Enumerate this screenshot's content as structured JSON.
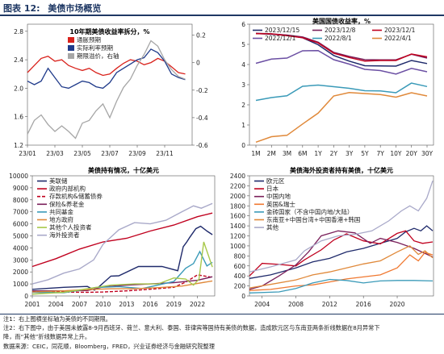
{
  "header": {
    "label": "图表 12:",
    "title": "美债市场概览"
  },
  "chart_data": [
    {
      "id": "c1",
      "type": "line",
      "title": "10年期美债收益率拆分，%",
      "x_ticks": [
        "23/01",
        "23/03",
        "23/05",
        "23/07",
        "23/09",
        "23/11"
      ],
      "y_left_ticks": [
        1.2,
        1.6,
        2.0,
        2.4,
        2.8
      ],
      "y_left_lim": [
        1.2,
        2.9
      ],
      "y_right_ticks": [
        -0.6,
        -0.4,
        -0.2,
        0,
        0.2
      ],
      "y_right_lim": [
        -0.6,
        0.28
      ],
      "x_lim": [
        0,
        12
      ],
      "series": [
        {
          "name": "通胀预期",
          "axis": "left",
          "color": "#d9221c",
          "x": [
            0,
            0.5,
            1,
            1.5,
            2,
            2.5,
            3,
            3.5,
            4,
            4.5,
            5,
            5.5,
            6,
            6.5,
            7,
            7.5,
            8,
            8.5,
            9,
            9.5,
            10,
            10.5,
            11,
            11.5
          ],
          "y": [
            2.22,
            2.32,
            2.42,
            2.45,
            2.38,
            2.4,
            2.32,
            2.28,
            2.25,
            2.28,
            2.22,
            2.18,
            2.2,
            2.28,
            2.35,
            2.4,
            2.38,
            2.33,
            2.36,
            2.42,
            2.38,
            2.3,
            2.22,
            2.2
          ]
        },
        {
          "name": "实际利率预期",
          "axis": "left",
          "color": "#1f3a8a",
          "x": [
            0,
            0.5,
            1,
            1.5,
            2,
            2.5,
            3,
            3.5,
            4,
            4.5,
            5,
            5.5,
            6,
            6.5,
            7,
            7.5,
            8,
            8.5,
            9,
            9.5,
            10,
            10.5,
            11,
            11.5
          ],
          "y": [
            2.1,
            2.05,
            2.1,
            2.28,
            2.15,
            2.02,
            2.0,
            2.05,
            2.1,
            2.08,
            2.02,
            2.0,
            2.08,
            2.22,
            2.28,
            2.34,
            2.4,
            2.43,
            2.55,
            2.5,
            2.38,
            2.2,
            2.15,
            2.12
          ]
        },
        {
          "name": "期限溢价，右轴",
          "axis": "right",
          "color": "#a6a6a6",
          "x": [
            0,
            0.5,
            1,
            1.5,
            2,
            2.5,
            3,
            3.5,
            4,
            4.5,
            5,
            5.5,
            6,
            6.5,
            7,
            7.5,
            8,
            8.5,
            9,
            9.5,
            10,
            10.5,
            11,
            11.5
          ],
          "y": [
            -0.52,
            -0.42,
            -0.38,
            -0.45,
            -0.5,
            -0.46,
            -0.5,
            -0.55,
            -0.44,
            -0.42,
            -0.35,
            -0.3,
            -0.4,
            -0.28,
            -0.18,
            -0.12,
            -0.02,
            0.06,
            0.16,
            0.12,
            0.02,
            -0.05,
            -0.1,
            -0.12
          ]
        }
      ]
    },
    {
      "id": "c2",
      "type": "line",
      "title": "美国国债收益率，%",
      "categories": [
        "1M",
        "2M",
        "3M",
        "6M",
        "1Y",
        "2Y",
        "3Y",
        "5Y",
        "7Y",
        "10Y",
        "20Y",
        "30Y"
      ],
      "y_ticks": [
        0,
        1,
        2,
        3,
        4,
        5,
        6
      ],
      "y_lim": [
        0,
        6
      ],
      "series": [
        {
          "name": "2023/12/15",
          "color": "#1f2a6b",
          "values": [
            5.54,
            5.5,
            5.45,
            5.33,
            4.98,
            4.45,
            4.17,
            3.94,
            3.93,
            3.92,
            4.2,
            4.05
          ]
        },
        {
          "name": "2023/12/8",
          "color": "#7a1f5a",
          "values": [
            5.55,
            5.52,
            5.46,
            5.37,
            5.11,
            4.6,
            4.4,
            4.24,
            4.23,
            4.23,
            4.51,
            4.32
          ]
        },
        {
          "name": "2023/12/1",
          "color": "#c0001e",
          "values": [
            5.53,
            5.52,
            5.43,
            5.33,
            5.07,
            4.56,
            4.35,
            4.17,
            4.2,
            4.2,
            4.52,
            4.38
          ]
        },
        {
          "name": "2022/12/1",
          "color": "#6b4fa3",
          "values": [
            4.06,
            4.27,
            4.32,
            4.68,
            4.69,
            4.24,
            4.02,
            3.76,
            3.7,
            3.53,
            3.81,
            3.64
          ]
        },
        {
          "name": "2022/8/1",
          "color": "#3a9ab8",
          "values": [
            2.22,
            2.36,
            2.45,
            2.92,
            2.98,
            2.9,
            2.82,
            2.7,
            2.69,
            2.6,
            3.08,
            2.91
          ]
        },
        {
          "name": "2022/4/1",
          "color": "#e0893a",
          "values": [
            0.15,
            0.42,
            0.49,
            1.05,
            1.59,
            2.44,
            2.61,
            2.56,
            2.51,
            2.38,
            2.6,
            2.44
          ]
        }
      ]
    },
    {
      "id": "c3",
      "type": "line",
      "title": "美债持有情况，十亿美元",
      "x_ticks": [
        "2001",
        "2004",
        "2007",
        "2010",
        "2013",
        "2016",
        "2019",
        "2022"
      ],
      "x_lim": [
        2001,
        2024.2
      ],
      "y_ticks": [
        0,
        1000,
        2000,
        3000,
        4000,
        5000,
        6000,
        7000,
        8000,
        9000,
        10000
      ],
      "y_lim": [
        0,
        10000
      ],
      "series": [
        {
          "name": "美联储",
          "color": "#1f2a6b",
          "dash": "",
          "x": [
            2001,
            2005,
            2008,
            2008.9,
            2009.5,
            2011,
            2012,
            2014.5,
            2017.5,
            2019.5,
            2020.2,
            2020.6,
            2021,
            2021.8,
            2022.4,
            2023.2,
            2023.9
          ],
          "y": [
            550,
            720,
            790,
            480,
            780,
            1650,
            1680,
            2450,
            2450,
            2100,
            4100,
            4450,
            4850,
            5600,
            5800,
            5400,
            5100
          ]
        },
        {
          "name": "政府内部机构",
          "color": "#c0001e",
          "dash": "",
          "x": [
            2001,
            2004,
            2007,
            2010,
            2013,
            2016,
            2019,
            2022,
            2023.9
          ],
          "y": [
            2450,
            3100,
            3900,
            4500,
            4800,
            5400,
            5900,
            6600,
            6900
          ]
        },
        {
          "name": "存款机构&储蓄债券",
          "color": "#c0001e",
          "dash": "4,2",
          "x": [
            2001,
            2005,
            2008,
            2010,
            2013,
            2016,
            2019,
            2020.5,
            2022,
            2023.9
          ],
          "y": [
            380,
            320,
            300,
            330,
            420,
            560,
            720,
            1150,
            1750,
            1550
          ]
        },
        {
          "name": "保险&养老金",
          "color": "#7a1f5a",
          "dash": "",
          "x": [
            2001,
            2005,
            2008,
            2010,
            2013,
            2016,
            2019,
            2022,
            2023.9
          ],
          "y": [
            420,
            420,
            450,
            750,
            900,
            1000,
            1100,
            1300,
            1600
          ]
        },
        {
          "name": "共同基金",
          "color": "#3a9ab8",
          "dash": "",
          "x": [
            2001,
            2005,
            2008,
            2009,
            2012,
            2015,
            2019,
            2020.5,
            2021.5,
            2022.3,
            2023.2,
            2023.9
          ],
          "y": [
            300,
            270,
            580,
            700,
            780,
            620,
            1200,
            2300,
            2700,
            3700,
            2500,
            2800
          ]
        },
        {
          "name": "地方政府",
          "color": "#e0893a",
          "dash": "",
          "x": [
            2001,
            2005,
            2008,
            2011,
            2014,
            2017,
            2020,
            2023.9
          ],
          "y": [
            330,
            420,
            540,
            600,
            600,
            690,
            820,
            1250
          ]
        },
        {
          "name": "其他个人投资者",
          "color": "#a8c84a",
          "dash": "",
          "x": [
            2001,
            2005,
            2008,
            2011,
            2014,
            2017,
            2019,
            2020.5,
            2021.5,
            2022.2,
            2022.8,
            2023.9
          ],
          "y": [
            150,
            300,
            600,
            900,
            1000,
            1000,
            1500,
            1400,
            900,
            1400,
            4500,
            2400
          ]
        },
        {
          "name": "海外投资者",
          "color": "#a9a9c9",
          "dash": "",
          "x": [
            2001,
            2003,
            2005,
            2007,
            2008.8,
            2010,
            2012,
            2014,
            2016,
            2018,
            2020,
            2021.5,
            2022.5,
            2023.9
          ],
          "y": [
            1000,
            1350,
            1900,
            2250,
            3000,
            4300,
            5500,
            6100,
            6000,
            6300,
            7000,
            7500,
            7300,
            7700
          ]
        }
      ]
    },
    {
      "id": "c4",
      "type": "line",
      "title": "美债海外投资者持有美债，十亿美元",
      "x_ticks": [
        "2004",
        "2008",
        "2012",
        "2016",
        "2020"
      ],
      "x_lim": [
        2002.5,
        2024.3
      ],
      "y_ticks": [
        0,
        200,
        400,
        600,
        800,
        1000,
        1200,
        1400,
        1600,
        1800,
        2000,
        2200,
        2400
      ],
      "y_lim": [
        0,
        2400
      ],
      "series": [
        {
          "name": "欧元区",
          "color": "#1f2a6b",
          "x": [
            2002.5,
            2005,
            2008,
            2010,
            2012,
            2014,
            2016,
            2018,
            2020,
            2021,
            2022,
            2022.8,
            2023.5,
            2024.2
          ],
          "y": [
            350,
            420,
            560,
            680,
            750,
            880,
            950,
            1050,
            1150,
            1280,
            1350,
            1300,
            1400,
            1300
          ]
        },
        {
          "name": "日本",
          "color": "#c0001e",
          "x": [
            2002.5,
            2004,
            2006,
            2008,
            2009,
            2011,
            2012.5,
            2014,
            2016,
            2018,
            2020,
            2021,
            2022,
            2023,
            2024.2
          ],
          "y": [
            400,
            650,
            630,
            600,
            720,
            920,
            1120,
            1240,
            1100,
            1040,
            1250,
            1300,
            1100,
            1050,
            1080
          ]
        },
        {
          "name": "中国内地",
          "color": "#7a1f5a",
          "x": [
            2002.5,
            2004,
            2006,
            2008,
            2009.5,
            2011,
            2013,
            2015,
            2016.8,
            2018,
            2020,
            2022,
            2024.2
          ],
          "y": [
            130,
            200,
            400,
            620,
            880,
            1200,
            1300,
            1260,
            1050,
            1150,
            1070,
            950,
            780
          ]
        },
        {
          "name": "英国&瑞士",
          "color": "#f07830",
          "x": [
            2002.5,
            2005,
            2008,
            2010,
            2012,
            2014,
            2016,
            2018,
            2020,
            2021.5,
            2022.5,
            2023.3,
            2024.2
          ],
          "y": [
            110,
            130,
            200,
            220,
            280,
            340,
            380,
            420,
            560,
            820,
            700,
            870,
            820
          ]
        },
        {
          "name": "金砖国家（不含中国内地/大陆）",
          "color": "#3a9ab8",
          "x": [
            2002.5,
            2006,
            2008,
            2010,
            2012,
            2014,
            2016,
            2018,
            2020,
            2022,
            2024.2
          ],
          "y": [
            60,
            80,
            150,
            260,
            330,
            310,
            260,
            300,
            310,
            310,
            300
          ]
        },
        {
          "name": "东南亚+中国台湾+中国香港+韩国",
          "color": "#e0893a",
          "x": [
            2002.5,
            2005,
            2008,
            2010,
            2012,
            2014,
            2016,
            2018,
            2020,
            2021.5,
            2022.5,
            2023.3,
            2024.2
          ],
          "y": [
            160,
            230,
            320,
            420,
            480,
            560,
            640,
            700,
            880,
            1000,
            830,
            900,
            760
          ]
        },
        {
          "name": "其他",
          "color": "#a9a9c9",
          "x": [
            2002.5,
            2005,
            2008,
            2009,
            2011,
            2013,
            2015,
            2017,
            2019,
            2020.5,
            2021.5,
            2022.5,
            2023.5,
            2024.2
          ],
          "y": [
            480,
            580,
            720,
            900,
            1100,
            1200,
            1230,
            1300,
            1500,
            1700,
            1800,
            1700,
            1950,
            2300
          ]
        }
      ]
    }
  ],
  "footer": {
    "note1": "注1：右上图横坐标轴为美债的不同期限。",
    "note2a": "注2：右下图中，由于美国未披露8-9月西班牙、荷兰、意大利、泰国、菲律宾等国持有美债的数据，造成欧元区与东南亚两条折线数据在8月异常下",
    "note2b": "降，而“其他”折线数据异常上升。",
    "source": "数据来源：CEIC，同花顺，Bloomberg，FRED，兴业证券经济与金融研究院整理"
  }
}
